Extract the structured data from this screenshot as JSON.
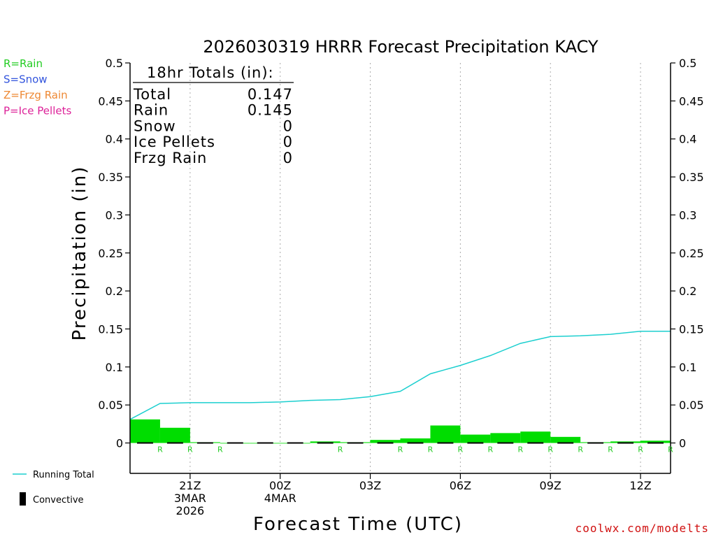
{
  "chart_data": {
    "type": "bar",
    "title": "2026030319 HRRR Forecast Precipitation KACY",
    "xlabel": "Forecast Time (UTC)",
    "ylabel": "Precipitation (in)",
    "ylim": [
      -0.04,
      0.5
    ],
    "yticks": [
      0,
      0.05,
      0.1,
      0.15,
      0.2,
      0.25,
      0.3,
      0.35,
      0.4,
      0.45,
      0.5
    ],
    "ytick_labels": [
      "0",
      "0.05",
      "0.1",
      "0.15",
      "0.2",
      "0.25",
      "0.3",
      "0.35",
      "0.4",
      "0.45",
      "0.5"
    ],
    "x_range_hours": [
      19,
      37
    ],
    "x_ticks": [
      {
        "hour": 21,
        "lines": [
          "21Z",
          "3MAR",
          "2026"
        ]
      },
      {
        "hour": 24,
        "lines": [
          "00Z",
          "4MAR"
        ]
      },
      {
        "hour": 27,
        "lines": [
          "03Z"
        ]
      },
      {
        "hour": 30,
        "lines": [
          "06Z"
        ]
      },
      {
        "hour": 33,
        "lines": [
          "09Z"
        ]
      },
      {
        "hour": 36,
        "lines": [
          "12Z"
        ]
      }
    ],
    "hours": [
      20,
      21,
      22,
      23,
      24,
      25,
      26,
      27,
      28,
      29,
      30,
      31,
      32,
      33,
      34,
      35,
      36,
      37
    ],
    "hourly_precip": [
      0.031,
      0.02,
      0.001,
      0.0,
      0.0,
      0.0,
      0.002,
      0.001,
      0.004,
      0.006,
      0.023,
      0.011,
      0.013,
      0.015,
      0.008,
      0.001,
      0.002,
      0.003
    ],
    "convective": [
      0,
      0,
      0,
      0,
      0,
      0,
      0,
      0,
      0,
      0,
      0,
      0,
      0,
      0,
      0,
      0,
      0,
      0
    ],
    "precip_type": [
      "R",
      "R",
      "R",
      "",
      "",
      "",
      "R",
      "",
      "R",
      "R",
      "R",
      "R",
      "R",
      "R",
      "R",
      "R",
      "R",
      "R"
    ],
    "running_total": [
      0.031,
      0.052,
      0.053,
      0.053,
      0.053,
      0.054,
      0.056,
      0.057,
      0.061,
      0.068,
      0.091,
      0.102,
      0.115,
      0.131,
      0.14,
      0.141,
      0.143,
      0.147
    ],
    "colors": {
      "bars": "#00dd00",
      "running_total": "#1ccfcf",
      "convective": "#000000",
      "grid": "#aaaaaa"
    },
    "series_legend": [
      {
        "name": "Running Total",
        "kind": "line"
      },
      {
        "name": "Convective",
        "kind": "bar"
      }
    ],
    "ptype_legend": [
      {
        "label": "R=Rain",
        "color": "#22cc22"
      },
      {
        "label": "S=Snow",
        "color": "#3355dd"
      },
      {
        "label": "Z=Frzg Rain",
        "color": "#ee8833"
      },
      {
        "label": "P=Ice Pellets",
        "color": "#dd2299"
      }
    ],
    "totals_box": {
      "header": "18hr Totals (in):",
      "rows": [
        {
          "label": "Total",
          "value": "0.147"
        },
        {
          "label": "Rain",
          "value": "0.145"
        },
        {
          "label": "Snow",
          "value": "0"
        },
        {
          "label": "Ice Pellets",
          "value": "0"
        },
        {
          "label": "Frzg Rain",
          "value": "0"
        }
      ]
    },
    "credit": "coolwx.com/modelts"
  }
}
